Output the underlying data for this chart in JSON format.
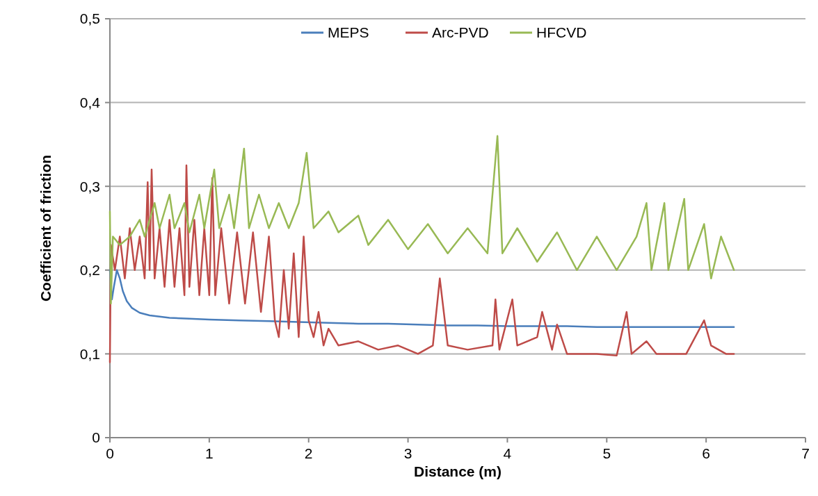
{
  "chart_data": {
    "type": "line",
    "xlabel": "Distance (m)",
    "ylabel": "Coefficient of friction",
    "xlim": [
      0,
      7
    ],
    "xticks": [
      0,
      1,
      2,
      3,
      4,
      5,
      6,
      7
    ],
    "ylim": [
      0,
      0.5
    ],
    "yticks": [
      {
        "value": 0,
        "label": "0"
      },
      {
        "value": 0.1,
        "label": "0,1"
      },
      {
        "value": 0.2,
        "label": "0,2"
      },
      {
        "value": 0.3,
        "label": "0,3"
      },
      {
        "value": 0.4,
        "label": "0,4"
      },
      {
        "value": 0.5,
        "label": "0,5"
      }
    ],
    "grid": "y",
    "legend": "top",
    "marker": "none",
    "series": [
      {
        "name": "MEPS",
        "color": "#4a7ebb",
        "x": [
          0,
          0.02,
          0.04,
          0.07,
          0.1,
          0.13,
          0.17,
          0.22,
          0.3,
          0.4,
          0.6,
          0.8,
          1,
          1.3,
          1.6,
          1.9,
          2.2,
          2.5,
          2.8,
          3.1,
          3.4,
          3.7,
          4,
          4.3,
          4.6,
          4.9,
          5.2,
          5.5,
          5.8,
          6.1,
          6.28
        ],
        "values": [
          0.2,
          0.165,
          0.18,
          0.2,
          0.19,
          0.175,
          0.163,
          0.155,
          0.149,
          0.146,
          0.143,
          0.142,
          0.141,
          0.14,
          0.139,
          0.138,
          0.137,
          0.136,
          0.136,
          0.135,
          0.134,
          0.134,
          0.133,
          0.133,
          0.133,
          0.132,
          0.132,
          0.132,
          0.132,
          0.132,
          0.132
        ]
      },
      {
        "name": "Arc-PVD",
        "color": "#be4b48",
        "x": [
          0,
          0.01,
          0.05,
          0.1,
          0.15,
          0.2,
          0.25,
          0.3,
          0.35,
          0.38,
          0.4,
          0.42,
          0.45,
          0.5,
          0.55,
          0.6,
          0.65,
          0.7,
          0.75,
          0.77,
          0.8,
          0.85,
          0.9,
          0.95,
          1.0,
          1.03,
          1.06,
          1.12,
          1.2,
          1.28,
          1.36,
          1.44,
          1.52,
          1.6,
          1.66,
          1.7,
          1.75,
          1.8,
          1.85,
          1.9,
          1.95,
          2.0,
          2.05,
          2.1,
          2.15,
          2.2,
          2.3,
          2.5,
          2.7,
          2.9,
          3.1,
          3.25,
          3.32,
          3.4,
          3.6,
          3.85,
          3.88,
          3.92,
          4.05,
          4.1,
          4.3,
          4.35,
          4.45,
          4.5,
          4.6,
          4.9,
          5.1,
          5.2,
          5.25,
          5.4,
          5.5,
          5.8,
          5.98,
          6.05,
          6.2,
          6.28
        ],
        "values": [
          0.09,
          0.23,
          0.2,
          0.24,
          0.19,
          0.25,
          0.2,
          0.24,
          0.19,
          0.305,
          0.2,
          0.32,
          0.19,
          0.25,
          0.18,
          0.26,
          0.18,
          0.25,
          0.17,
          0.325,
          0.18,
          0.26,
          0.17,
          0.25,
          0.17,
          0.31,
          0.17,
          0.25,
          0.16,
          0.245,
          0.16,
          0.245,
          0.15,
          0.24,
          0.14,
          0.12,
          0.2,
          0.13,
          0.22,
          0.12,
          0.24,
          0.14,
          0.12,
          0.15,
          0.11,
          0.13,
          0.11,
          0.115,
          0.105,
          0.11,
          0.1,
          0.11,
          0.19,
          0.11,
          0.105,
          0.11,
          0.165,
          0.105,
          0.165,
          0.11,
          0.12,
          0.15,
          0.105,
          0.135,
          0.1,
          0.1,
          0.098,
          0.15,
          0.1,
          0.115,
          0.1,
          0.1,
          0.14,
          0.11,
          0.1,
          0.1
        ]
      },
      {
        "name": "HFCVD",
        "color": "#98b954",
        "x": [
          0,
          0.01,
          0.03,
          0.1,
          0.2,
          0.3,
          0.35,
          0.45,
          0.5,
          0.6,
          0.65,
          0.75,
          0.8,
          0.9,
          0.95,
          1.05,
          1.1,
          1.2,
          1.25,
          1.35,
          1.4,
          1.5,
          1.6,
          1.7,
          1.8,
          1.9,
          1.98,
          2.05,
          2.2,
          2.3,
          2.5,
          2.6,
          2.8,
          3.0,
          3.2,
          3.4,
          3.6,
          3.8,
          3.9,
          3.95,
          4.1,
          4.3,
          4.5,
          4.7,
          4.9,
          5.1,
          5.3,
          5.4,
          5.45,
          5.58,
          5.62,
          5.78,
          5.82,
          5.98,
          6.05,
          6.15,
          6.28
        ],
        "values": [
          0.27,
          0.16,
          0.24,
          0.23,
          0.24,
          0.26,
          0.24,
          0.28,
          0.25,
          0.29,
          0.25,
          0.28,
          0.245,
          0.29,
          0.25,
          0.32,
          0.25,
          0.29,
          0.25,
          0.345,
          0.25,
          0.29,
          0.25,
          0.28,
          0.25,
          0.28,
          0.34,
          0.25,
          0.27,
          0.245,
          0.265,
          0.23,
          0.26,
          0.225,
          0.255,
          0.22,
          0.25,
          0.22,
          0.36,
          0.22,
          0.25,
          0.21,
          0.245,
          0.2,
          0.24,
          0.2,
          0.24,
          0.28,
          0.2,
          0.28,
          0.2,
          0.285,
          0.2,
          0.255,
          0.19,
          0.24,
          0.2
        ]
      }
    ]
  }
}
